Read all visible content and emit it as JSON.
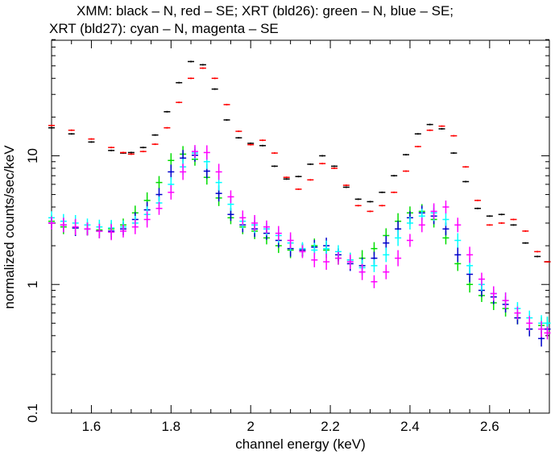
{
  "chart_data": {
    "type": "scatter",
    "title_lines": [
      "XMM: black – N, red – SE; XRT (bld26): green – N, blue – SE;",
      "XRT (bld27): cyan – N, magenta – SE"
    ],
    "xlabel": "channel energy (keV)",
    "ylabel": "normalized counts/sec/keV",
    "xlim": [
      1.5,
      2.75
    ],
    "ylim": [
      0.1,
      80
    ],
    "yscale": "log",
    "x_ticks": [
      1.6,
      1.8,
      2.0,
      2.2,
      2.4,
      2.6
    ],
    "x_tick_labels": [
      "1.6",
      "1.8",
      "2",
      "2.2",
      "2.4",
      "2.6"
    ],
    "y_ticks": [
      0.1,
      1,
      10
    ],
    "y_tick_labels": [
      "0.1",
      "1",
      "10"
    ],
    "series": [
      {
        "name": "XMM N",
        "color": "#000000",
        "points": [
          [
            1.5,
            16.5
          ],
          [
            1.55,
            14.8
          ],
          [
            1.6,
            12.8
          ],
          [
            1.65,
            11.0
          ],
          [
            1.68,
            10.5
          ],
          [
            1.7,
            10.6
          ],
          [
            1.73,
            11.6
          ],
          [
            1.76,
            14.5
          ],
          [
            1.79,
            22
          ],
          [
            1.82,
            37
          ],
          [
            1.85,
            54
          ],
          [
            1.88,
            51
          ],
          [
            1.91,
            33
          ],
          [
            1.94,
            19
          ],
          [
            1.97,
            13.8
          ],
          [
            2.0,
            12.5
          ],
          [
            2.03,
            12.0
          ],
          [
            2.06,
            8.3
          ],
          [
            2.09,
            6.6
          ],
          [
            2.12,
            6.9
          ],
          [
            2.15,
            8.6
          ],
          [
            2.18,
            10.0
          ],
          [
            2.21,
            8.3
          ],
          [
            2.24,
            5.7
          ],
          [
            2.27,
            4.6
          ],
          [
            2.3,
            4.4
          ],
          [
            2.33,
            5.2
          ],
          [
            2.36,
            7.0
          ],
          [
            2.39,
            10.2
          ],
          [
            2.42,
            14.8
          ],
          [
            2.45,
            17.5
          ],
          [
            2.48,
            16.2
          ],
          [
            2.51,
            10.5
          ],
          [
            2.54,
            6.3
          ],
          [
            2.57,
            3.9
          ],
          [
            2.6,
            3.4
          ],
          [
            2.63,
            3.5
          ],
          [
            2.66,
            2.9
          ],
          [
            2.69,
            2.1
          ],
          [
            2.72,
            1.65
          ],
          [
            2.745,
            1.5
          ]
        ]
      },
      {
        "name": "XMM SE",
        "color": "#ff0000",
        "points": [
          [
            1.5,
            17.2
          ],
          [
            1.55,
            15.8
          ],
          [
            1.6,
            13.5
          ],
          [
            1.65,
            11.6
          ],
          [
            1.68,
            10.6
          ],
          [
            1.7,
            10.3
          ],
          [
            1.73,
            10.8
          ],
          [
            1.76,
            12.3
          ],
          [
            1.79,
            16.5
          ],
          [
            1.82,
            26
          ],
          [
            1.85,
            40
          ],
          [
            1.88,
            48
          ],
          [
            1.91,
            40
          ],
          [
            1.94,
            25
          ],
          [
            1.97,
            15.5
          ],
          [
            2.0,
            12.2
          ],
          [
            2.03,
            13.2
          ],
          [
            2.06,
            10.5
          ],
          [
            2.09,
            6.8
          ],
          [
            2.12,
            5.5
          ],
          [
            2.15,
            6.5
          ],
          [
            2.18,
            8.7
          ],
          [
            2.21,
            8.0
          ],
          [
            2.24,
            5.9
          ],
          [
            2.27,
            4.1
          ],
          [
            2.3,
            3.7
          ],
          [
            2.33,
            4.1
          ],
          [
            2.36,
            5.2
          ],
          [
            2.39,
            7.6
          ],
          [
            2.42,
            11.8
          ],
          [
            2.45,
            15.8
          ],
          [
            2.48,
            17.0
          ],
          [
            2.51,
            14.3
          ],
          [
            2.54,
            8.2
          ],
          [
            2.57,
            4.5
          ],
          [
            2.6,
            2.9
          ],
          [
            2.63,
            3.0
          ],
          [
            2.66,
            3.2
          ],
          [
            2.69,
            2.6
          ],
          [
            2.72,
            1.8
          ],
          [
            2.745,
            1.5
          ]
        ]
      },
      {
        "name": "XRT (bld26) N",
        "color": "#00dd00",
        "points": [
          [
            1.5,
            3.1
          ],
          [
            1.53,
            2.8
          ],
          [
            1.56,
            2.75
          ],
          [
            1.59,
            2.7
          ],
          [
            1.62,
            2.65
          ],
          [
            1.65,
            2.7
          ],
          [
            1.68,
            2.9
          ],
          [
            1.71,
            3.6
          ],
          [
            1.74,
            4.5
          ],
          [
            1.77,
            6.2
          ],
          [
            1.8,
            9.2
          ],
          [
            1.83,
            10.3
          ],
          [
            1.86,
            9.4
          ],
          [
            1.89,
            6.8
          ],
          [
            1.92,
            4.7
          ],
          [
            1.95,
            3.3
          ],
          [
            1.98,
            2.8
          ],
          [
            2.01,
            2.6
          ],
          [
            2.04,
            2.3
          ],
          [
            2.07,
            2.0
          ],
          [
            2.1,
            1.85
          ],
          [
            2.13,
            1.85
          ],
          [
            2.16,
            2.0
          ],
          [
            2.19,
            1.85
          ],
          [
            2.22,
            1.6
          ],
          [
            2.25,
            1.55
          ],
          [
            2.28,
            1.6
          ],
          [
            2.31,
            1.9
          ],
          [
            2.34,
            2.4
          ],
          [
            2.37,
            3.1
          ],
          [
            2.4,
            3.6
          ],
          [
            2.43,
            3.7
          ],
          [
            2.46,
            3.2
          ],
          [
            2.49,
            2.3
          ],
          [
            2.52,
            1.45
          ],
          [
            2.55,
            1.0
          ],
          [
            2.58,
            0.82
          ],
          [
            2.61,
            0.72
          ],
          [
            2.64,
            0.65
          ],
          [
            2.67,
            0.55
          ],
          [
            2.7,
            0.45
          ],
          [
            2.73,
            0.48
          ],
          [
            2.745,
            0.5
          ]
        ]
      },
      {
        "name": "XRT (bld26) SE",
        "color": "#0000cc",
        "points": [
          [
            1.5,
            3.0
          ],
          [
            1.53,
            2.9
          ],
          [
            1.56,
            2.75
          ],
          [
            1.59,
            2.7
          ],
          [
            1.62,
            2.6
          ],
          [
            1.65,
            2.6
          ],
          [
            1.68,
            2.7
          ],
          [
            1.71,
            3.2
          ],
          [
            1.74,
            3.8
          ],
          [
            1.77,
            5.0
          ],
          [
            1.8,
            7.5
          ],
          [
            1.83,
            9.6
          ],
          [
            1.86,
            10.1
          ],
          [
            1.89,
            7.6
          ],
          [
            1.92,
            5.1
          ],
          [
            1.95,
            3.5
          ],
          [
            1.98,
            2.9
          ],
          [
            2.01,
            2.7
          ],
          [
            2.04,
            2.5
          ],
          [
            2.07,
            2.2
          ],
          [
            2.1,
            1.9
          ],
          [
            2.13,
            1.85
          ],
          [
            2.16,
            1.95
          ],
          [
            2.19,
            2.0
          ],
          [
            2.22,
            1.7
          ],
          [
            2.25,
            1.45
          ],
          [
            2.28,
            1.4
          ],
          [
            2.31,
            1.6
          ],
          [
            2.34,
            2.1
          ],
          [
            2.37,
            2.7
          ],
          [
            2.4,
            3.3
          ],
          [
            2.43,
            3.6
          ],
          [
            2.46,
            3.4
          ],
          [
            2.49,
            2.7
          ],
          [
            2.52,
            1.7
          ],
          [
            2.55,
            1.2
          ],
          [
            2.58,
            0.9
          ],
          [
            2.61,
            0.8
          ],
          [
            2.64,
            0.7
          ],
          [
            2.67,
            0.55
          ],
          [
            2.7,
            0.45
          ],
          [
            2.73,
            0.38
          ],
          [
            2.745,
            0.45
          ]
        ]
      },
      {
        "name": "XRT (bld27) N",
        "color": "#00ffff",
        "points": [
          [
            1.5,
            3.3
          ],
          [
            1.53,
            3.1
          ],
          [
            1.56,
            3.0
          ],
          [
            1.59,
            2.9
          ],
          [
            1.62,
            2.8
          ],
          [
            1.65,
            2.75
          ],
          [
            1.68,
            2.8
          ],
          [
            1.71,
            3.0
          ],
          [
            1.74,
            3.5
          ],
          [
            1.77,
            4.3
          ],
          [
            1.8,
            6.0
          ],
          [
            1.83,
            8.2
          ],
          [
            1.86,
            10.5
          ],
          [
            1.89,
            9.0
          ],
          [
            1.92,
            6.2
          ],
          [
            1.95,
            4.2
          ],
          [
            1.98,
            3.1
          ],
          [
            2.01,
            2.9
          ],
          [
            2.04,
            2.7
          ],
          [
            2.07,
            2.4
          ],
          [
            2.1,
            2.1
          ],
          [
            2.13,
            1.9
          ],
          [
            2.16,
            1.85
          ],
          [
            2.19,
            1.9
          ],
          [
            2.22,
            1.8
          ],
          [
            2.25,
            1.55
          ],
          [
            2.28,
            1.35
          ],
          [
            2.31,
            1.4
          ],
          [
            2.34,
            1.7
          ],
          [
            2.37,
            2.3
          ],
          [
            2.4,
            3.0
          ],
          [
            2.43,
            3.4
          ],
          [
            2.46,
            3.6
          ],
          [
            2.49,
            3.2
          ],
          [
            2.52,
            2.2
          ],
          [
            2.55,
            1.4
          ],
          [
            2.58,
            1.0
          ],
          [
            2.61,
            0.85
          ],
          [
            2.64,
            0.75
          ],
          [
            2.67,
            0.65
          ],
          [
            2.7,
            0.55
          ],
          [
            2.73,
            0.5
          ],
          [
            2.745,
            0.5
          ]
        ]
      },
      {
        "name": "XRT (bld27) SE",
        "color": "#ff00ff",
        "points": [
          [
            1.5,
            3.0
          ],
          [
            1.53,
            2.9
          ],
          [
            1.56,
            2.8
          ],
          [
            1.59,
            2.7
          ],
          [
            1.62,
            2.6
          ],
          [
            1.65,
            2.55
          ],
          [
            1.68,
            2.6
          ],
          [
            1.71,
            2.8
          ],
          [
            1.74,
            3.2
          ],
          [
            1.77,
            3.9
          ],
          [
            1.8,
            5.2
          ],
          [
            1.83,
            7.5
          ],
          [
            1.86,
            10.8
          ],
          [
            1.89,
            10.6
          ],
          [
            1.92,
            7.5
          ],
          [
            1.95,
            4.8
          ],
          [
            1.98,
            3.3
          ],
          [
            2.01,
            3.0
          ],
          [
            2.04,
            2.8
          ],
          [
            2.07,
            2.5
          ],
          [
            2.1,
            2.2
          ],
          [
            2.13,
            1.8
          ],
          [
            2.16,
            1.55
          ],
          [
            2.19,
            1.5
          ],
          [
            2.22,
            1.6
          ],
          [
            2.25,
            1.5
          ],
          [
            2.28,
            1.25
          ],
          [
            2.31,
            1.05
          ],
          [
            2.34,
            1.25
          ],
          [
            2.37,
            1.6
          ],
          [
            2.4,
            2.2
          ],
          [
            2.43,
            2.9
          ],
          [
            2.46,
            3.7
          ],
          [
            2.49,
            4.0
          ],
          [
            2.52,
            2.9
          ],
          [
            2.55,
            1.7
          ],
          [
            2.58,
            1.1
          ],
          [
            2.61,
            0.85
          ],
          [
            2.64,
            0.75
          ],
          [
            2.67,
            0.6
          ],
          [
            2.7,
            0.5
          ],
          [
            2.73,
            0.45
          ],
          [
            2.745,
            0.42
          ]
        ]
      }
    ]
  }
}
